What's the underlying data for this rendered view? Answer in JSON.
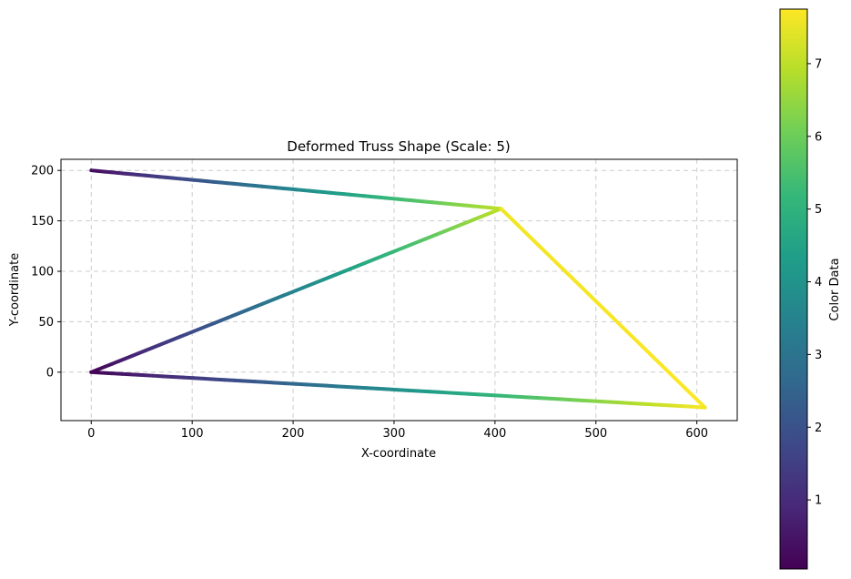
{
  "chart_data": {
    "type": "line",
    "title": "Deformed Truss Shape (Scale: 5)",
    "xlabel": "X-coordinate",
    "ylabel": "Y-coordinate",
    "xlim": [
      -30,
      640
    ],
    "ylim": [
      -48,
      211
    ],
    "xticks": [
      0,
      100,
      200,
      300,
      400,
      500,
      600
    ],
    "yticks": [
      0,
      50,
      100,
      150,
      200
    ],
    "grid": true,
    "colormap": "viridis",
    "colorbar": {
      "label": "Color Data",
      "range": [
        0.05,
        7.75
      ],
      "ticks": [
        1,
        2,
        3,
        4,
        5,
        6,
        7
      ]
    },
    "members": [
      {
        "from": [
          0,
          200
        ],
        "to": [
          406,
          162
        ],
        "color_from": 0.3,
        "color_to": 7.0
      },
      {
        "from": [
          0,
          0
        ],
        "to": [
          406,
          162
        ],
        "color_from": 0.1,
        "color_to": 7.0
      },
      {
        "from": [
          406,
          162
        ],
        "to": [
          608,
          -35
        ],
        "color_from": 7.6,
        "color_to": 7.75
      },
      {
        "from": [
          0,
          0
        ],
        "to": [
          608,
          -35
        ],
        "color_from": 0.1,
        "color_to": 7.7
      }
    ]
  }
}
